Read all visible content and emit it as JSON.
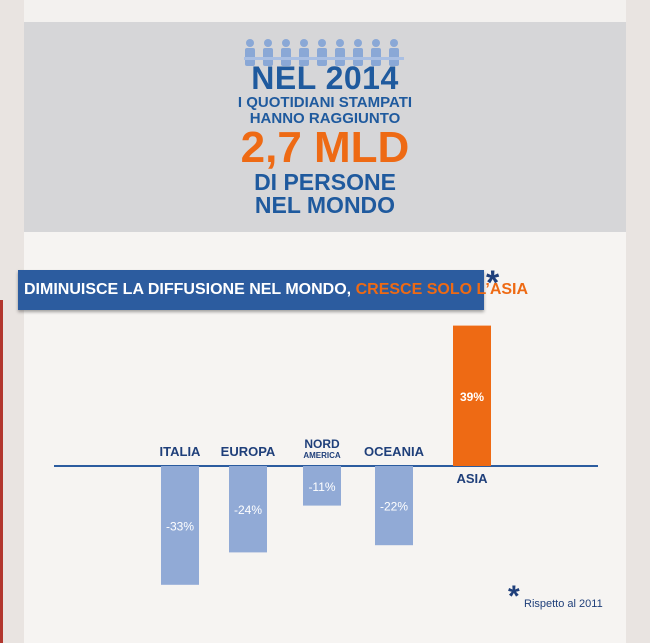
{
  "header": {
    "line1": "NEL 2014",
    "line2": "I QUOTIDIANI STAMPATI",
    "line3": "HANNO RAGGIUNTO",
    "line4": "2,7 MLD",
    "line5": "DI PERSONE",
    "line6": "NEL MONDO"
  },
  "banner": {
    "title_main": "DIMINUISCE LA DIFFUSIONE NEL MONDO,",
    "title_accent": "CRESCE SOLO L’ASIA",
    "asterisk": "*"
  },
  "footnote": {
    "asterisk": "*",
    "text": "Rispetto al 2011"
  },
  "colors": {
    "blue": "#2c5c9f",
    "orange": "#ee6a14",
    "bar_blue": "#91aad6"
  },
  "chart_data": {
    "type": "bar",
    "categories": [
      {
        "line1": "ITALIA",
        "line2": ""
      },
      {
        "line1": "EUROPA",
        "line2": ""
      },
      {
        "line1": "NORD",
        "line2": "AMERICA"
      },
      {
        "line1": "OCEANIA",
        "line2": ""
      },
      {
        "line1": "ASIA",
        "line2": ""
      }
    ],
    "values": [
      -33,
      -24,
      -11,
      -22,
      39
    ],
    "data_labels": [
      "-33%",
      "-24%",
      "-11%",
      "-22%",
      "39%"
    ],
    "unit": "%",
    "highlight_index": 4
  }
}
